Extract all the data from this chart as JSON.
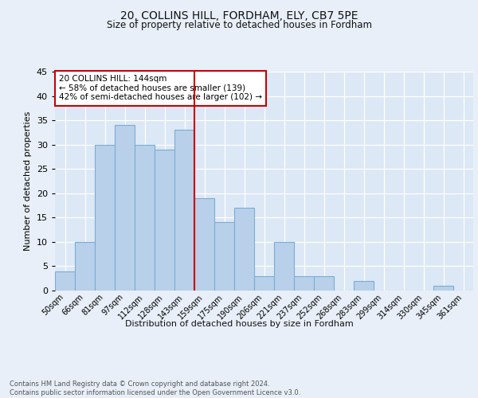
{
  "title1": "20, COLLINS HILL, FORDHAM, ELY, CB7 5PE",
  "title2": "Size of property relative to detached houses in Fordham",
  "xlabel": "Distribution of detached houses by size in Fordham",
  "ylabel": "Number of detached properties",
  "bin_labels": [
    "50sqm",
    "66sqm",
    "81sqm",
    "97sqm",
    "112sqm",
    "128sqm",
    "143sqm",
    "159sqm",
    "175sqm",
    "190sqm",
    "206sqm",
    "221sqm",
    "237sqm",
    "252sqm",
    "268sqm",
    "283sqm",
    "299sqm",
    "314sqm",
    "330sqm",
    "345sqm",
    "361sqm"
  ],
  "bar_values": [
    4,
    10,
    30,
    34,
    30,
    29,
    33,
    19,
    14,
    17,
    3,
    10,
    3,
    3,
    0,
    2,
    0,
    0,
    0,
    1,
    0
  ],
  "bar_color": "#b8d0ea",
  "bar_edge_color": "#7aadd4",
  "vline_x_index": 6,
  "vline_color": "#cc0000",
  "annotation_text": "20 COLLINS HILL: 144sqm\n← 58% of detached houses are smaller (139)\n42% of semi-detached houses are larger (102) →",
  "annotation_box_color": "#ffffff",
  "annotation_box_edge_color": "#cc0000",
  "ylim": [
    0,
    45
  ],
  "yticks": [
    0,
    5,
    10,
    15,
    20,
    25,
    30,
    35,
    40,
    45
  ],
  "footer_text": "Contains HM Land Registry data © Crown copyright and database right 2024.\nContains public sector information licensed under the Open Government Licence v3.0.",
  "bg_color": "#e8eff8",
  "plot_bg_color": "#dce8f5"
}
